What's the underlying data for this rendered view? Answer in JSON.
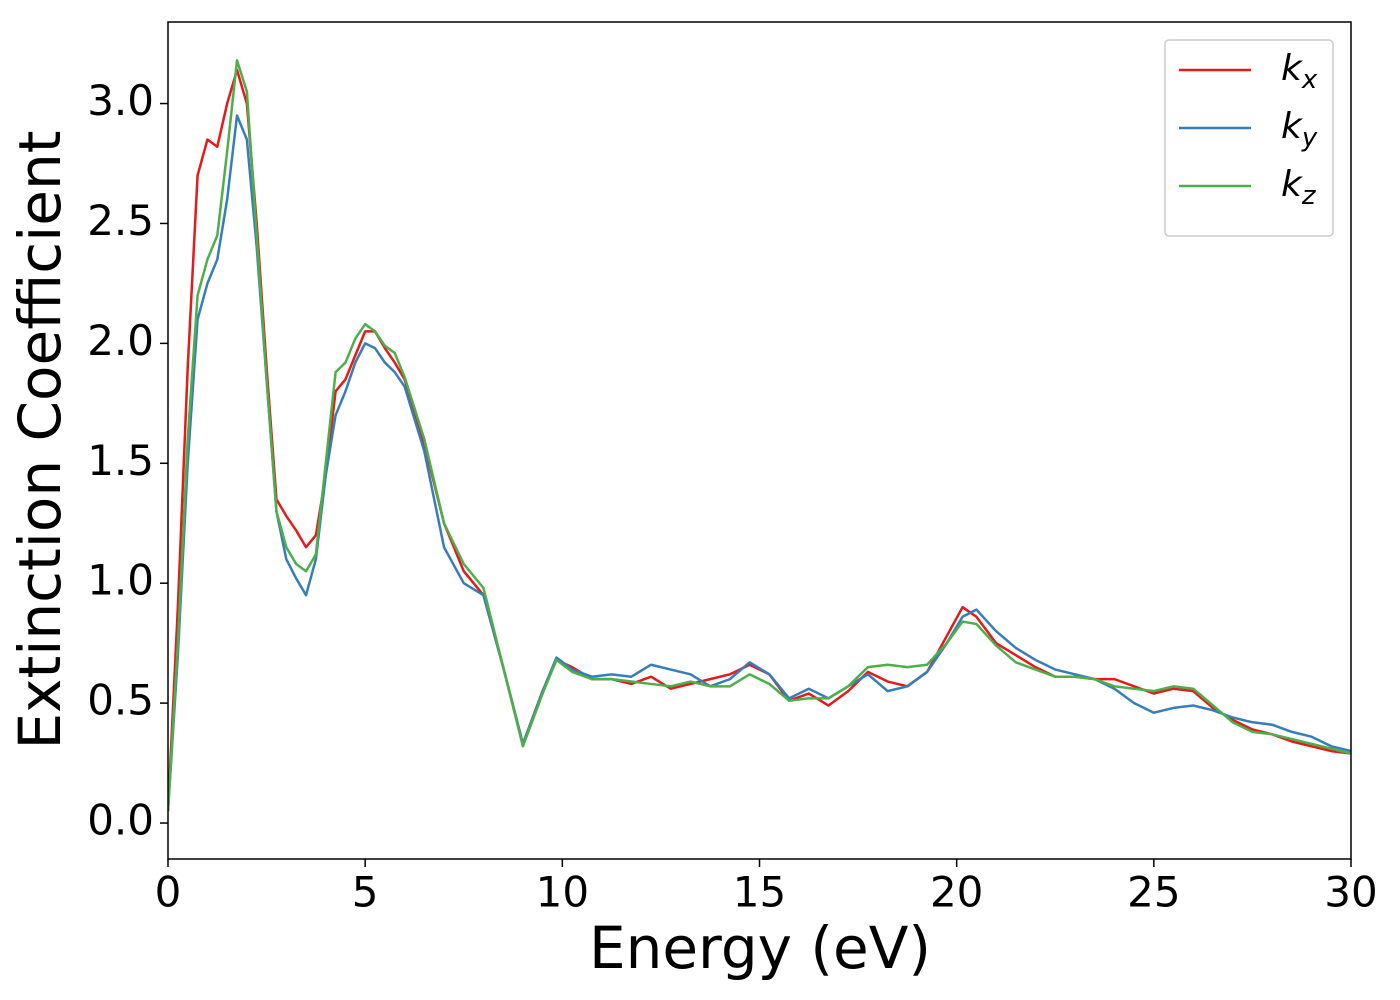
{
  "chart_data": {
    "type": "line",
    "xlabel": "Energy (eV)",
    "ylabel": "Extinction Coefficient",
    "x": [
      0,
      0.25,
      0.5,
      0.75,
      1.0,
      1.25,
      1.5,
      1.75,
      2.0,
      2.25,
      2.5,
      2.75,
      3.0,
      3.25,
      3.5,
      3.75,
      4.0,
      4.25,
      4.5,
      4.75,
      5.0,
      5.25,
      5.5,
      5.75,
      6.0,
      6.5,
      7.0,
      7.5,
      8.0,
      8.5,
      9.0,
      9.5,
      9.85,
      10.25,
      10.75,
      11.25,
      11.75,
      12.25,
      12.75,
      13.25,
      13.75,
      14.25,
      14.75,
      15.25,
      15.75,
      16.25,
      16.75,
      17.25,
      17.75,
      18.25,
      18.75,
      19.25,
      19.75,
      20.15,
      20.5,
      21,
      21.5,
      22,
      22.5,
      23,
      23.5,
      24,
      24.5,
      25,
      25.5,
      26,
      26.5,
      27,
      27.5,
      28,
      28.5,
      29,
      29.5,
      30
    ],
    "series": [
      {
        "name": "k_x",
        "color": "#e41a1c",
        "values": [
          0.05,
          0.9,
          1.9,
          2.7,
          2.85,
          2.82,
          3.0,
          3.14,
          3.0,
          2.5,
          1.9,
          1.35,
          1.28,
          1.22,
          1.15,
          1.2,
          1.45,
          1.8,
          1.85,
          1.95,
          2.05,
          2.05,
          1.98,
          1.92,
          1.85,
          1.58,
          1.25,
          1.05,
          0.95,
          0.65,
          0.33,
          0.55,
          0.68,
          0.65,
          0.6,
          0.6,
          0.58,
          0.61,
          0.56,
          0.58,
          0.6,
          0.62,
          0.66,
          0.62,
          0.51,
          0.54,
          0.49,
          0.55,
          0.63,
          0.59,
          0.57,
          0.63,
          0.78,
          0.9,
          0.86,
          0.75,
          0.7,
          0.65,
          0.61,
          0.61,
          0.6,
          0.6,
          0.57,
          0.54,
          0.56,
          0.55,
          0.48,
          0.43,
          0.39,
          0.37,
          0.34,
          0.32,
          0.3,
          0.29
        ]
      },
      {
        "name": "k_y",
        "color": "#377eb8",
        "values": [
          0.05,
          0.7,
          1.5,
          2.1,
          2.25,
          2.35,
          2.6,
          2.95,
          2.85,
          2.4,
          1.85,
          1.3,
          1.1,
          1.02,
          0.95,
          1.1,
          1.45,
          1.7,
          1.8,
          1.92,
          2.0,
          1.98,
          1.92,
          1.88,
          1.82,
          1.55,
          1.15,
          1.0,
          0.95,
          0.65,
          0.33,
          0.55,
          0.69,
          0.64,
          0.61,
          0.62,
          0.61,
          0.66,
          0.64,
          0.62,
          0.57,
          0.6,
          0.67,
          0.62,
          0.52,
          0.56,
          0.52,
          0.57,
          0.62,
          0.55,
          0.57,
          0.63,
          0.75,
          0.86,
          0.89,
          0.8,
          0.73,
          0.68,
          0.64,
          0.62,
          0.6,
          0.56,
          0.5,
          0.46,
          0.48,
          0.49,
          0.47,
          0.44,
          0.42,
          0.41,
          0.38,
          0.36,
          0.32,
          0.3
        ]
      },
      {
        "name": "k_z",
        "color": "#4daf4a",
        "values": [
          0.05,
          0.75,
          1.6,
          2.2,
          2.35,
          2.45,
          2.8,
          3.18,
          3.05,
          2.45,
          1.85,
          1.3,
          1.15,
          1.08,
          1.05,
          1.12,
          1.5,
          1.88,
          1.92,
          2.02,
          2.08,
          2.05,
          1.99,
          1.96,
          1.86,
          1.6,
          1.25,
          1.08,
          0.98,
          0.65,
          0.32,
          0.54,
          0.68,
          0.63,
          0.6,
          0.6,
          0.59,
          0.58,
          0.57,
          0.59,
          0.57,
          0.57,
          0.62,
          0.58,
          0.51,
          0.52,
          0.52,
          0.57,
          0.65,
          0.66,
          0.65,
          0.66,
          0.75,
          0.84,
          0.83,
          0.74,
          0.67,
          0.64,
          0.61,
          0.61,
          0.6,
          0.57,
          0.56,
          0.55,
          0.57,
          0.56,
          0.49,
          0.42,
          0.38,
          0.37,
          0.35,
          0.33,
          0.31,
          0.29
        ]
      }
    ],
    "xlim": [
      0,
      30
    ],
    "ylim": [
      -0.15,
      3.34
    ],
    "xticks": [
      0,
      5,
      10,
      15,
      20,
      25,
      30
    ],
    "yticks": [
      {
        "value": 0,
        "label": "0.0"
      },
      0.5,
      {
        "value": 1,
        "label": "1.0"
      },
      1.5,
      {
        "value": 2,
        "label": "2.0"
      },
      2.5,
      {
        "value": 3,
        "label": "3.0"
      }
    ],
    "legend": "upper right"
  }
}
